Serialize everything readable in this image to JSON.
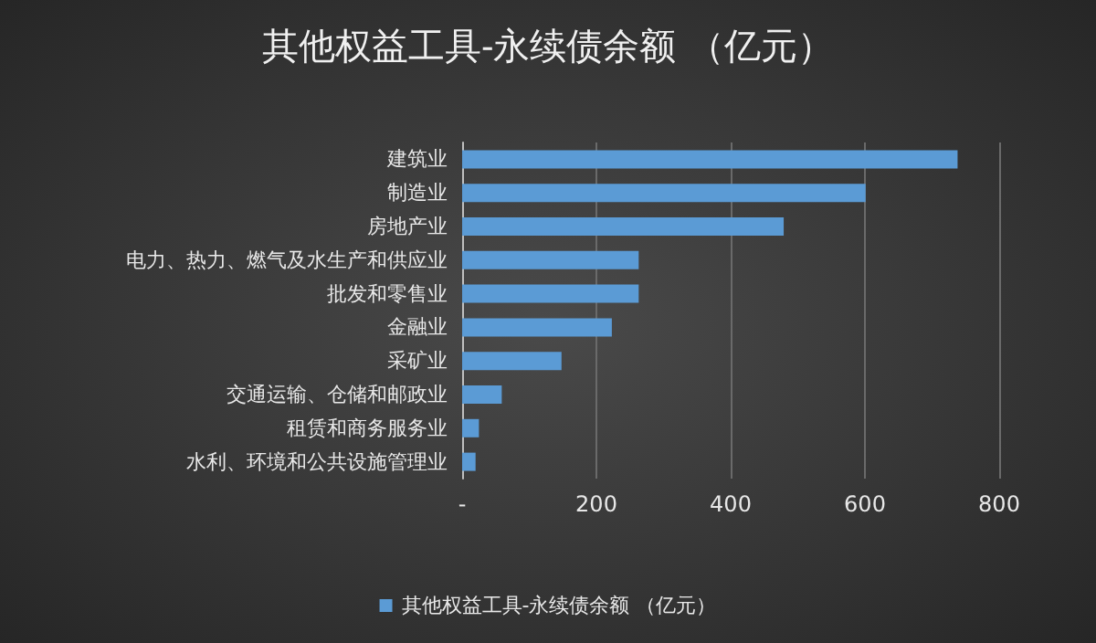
{
  "chart_data": {
    "type": "bar",
    "orientation": "horizontal",
    "title": "其他权益工具-永续债余额 （亿元）",
    "categories": [
      "建筑业",
      "制造业",
      "房地产业",
      "电力、热力、燃气及水生产和供应业",
      "批发和零售业",
      "金融业",
      "采矿业",
      "交通运输、仓储和邮政业",
      "租赁和商务服务业",
      "水利、环境和公共设施管理业"
    ],
    "series": [
      {
        "name": "其他权益工具-永续债余额 （亿元）",
        "color": "#5b9bd5",
        "values": [
          738,
          601,
          479,
          263,
          263,
          223,
          148,
          59,
          25,
          20
        ]
      }
    ],
    "xlim": [
      0,
      800
    ],
    "xticks": [
      {
        "value": 0,
        "label": "-"
      },
      200,
      400,
      600,
      800
    ],
    "grid": "x",
    "legend": "bottom"
  }
}
